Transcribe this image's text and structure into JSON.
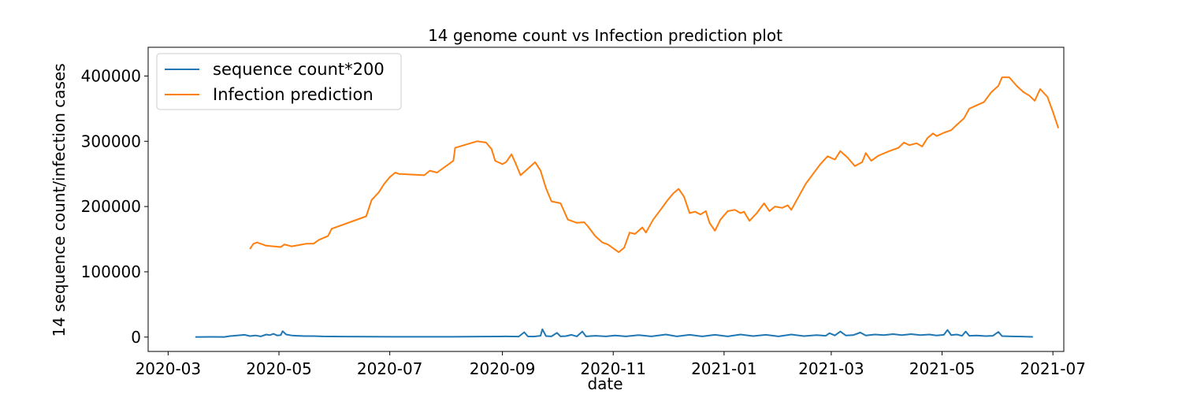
{
  "chart_data": {
    "type": "line",
    "title": "14 genome count vs Infection prediction plot",
    "xlabel": "date",
    "ylabel": "14 sequence count/infection cases",
    "xlim": [
      "2020-02-19",
      "2021-07-07"
    ],
    "ylim": [
      -22000,
      444000
    ],
    "grid": false,
    "legend_position": "top-left",
    "x_ticks": [
      "2020-03",
      "2020-05",
      "2020-07",
      "2020-09",
      "2020-11",
      "2021-01",
      "2021-03",
      "2021-05",
      "2021-07"
    ],
    "y_ticks": [
      0,
      100000,
      200000,
      300000,
      400000
    ],
    "y_tick_labels": [
      "0",
      "100000",
      "200000",
      "300000",
      "400000"
    ],
    "series": [
      {
        "name": "sequence count*200",
        "color": "#1f77b4",
        "points": [
          [
            "2020-03-16",
            200
          ],
          [
            "2020-03-25",
            300
          ],
          [
            "2020-04-01",
            200
          ],
          [
            "2020-04-04",
            1500
          ],
          [
            "2020-04-08",
            2500
          ],
          [
            "2020-04-12",
            3500
          ],
          [
            "2020-04-15",
            1500
          ],
          [
            "2020-04-18",
            2500
          ],
          [
            "2020-04-21",
            1000
          ],
          [
            "2020-04-24",
            4000
          ],
          [
            "2020-04-26",
            3000
          ],
          [
            "2020-04-28",
            5000
          ],
          [
            "2020-04-30",
            2500
          ],
          [
            "2020-05-02",
            3000
          ],
          [
            "2020-05-03",
            9000
          ],
          [
            "2020-05-05",
            4000
          ],
          [
            "2020-05-08",
            2500
          ],
          [
            "2020-05-11",
            2000
          ],
          [
            "2020-05-15",
            1500
          ],
          [
            "2020-05-20",
            1500
          ],
          [
            "2020-05-25",
            1000
          ],
          [
            "2020-06-05",
            800
          ],
          [
            "2020-06-20",
            600
          ],
          [
            "2020-07-01",
            500
          ],
          [
            "2020-07-20",
            500
          ],
          [
            "2020-08-05",
            500
          ],
          [
            "2020-08-20",
            800
          ],
          [
            "2020-09-03",
            1000
          ],
          [
            "2020-09-10",
            800
          ],
          [
            "2020-09-13",
            7500
          ],
          [
            "2020-09-15",
            1000
          ],
          [
            "2020-09-18",
            800
          ],
          [
            "2020-09-22",
            2000
          ],
          [
            "2020-09-23",
            12000
          ],
          [
            "2020-09-25",
            1500
          ],
          [
            "2020-09-28",
            1000
          ],
          [
            "2020-10-01",
            6500
          ],
          [
            "2020-10-03",
            1000
          ],
          [
            "2020-10-06",
            1500
          ],
          [
            "2020-10-09",
            3500
          ],
          [
            "2020-10-12",
            1000
          ],
          [
            "2020-10-15",
            8500
          ],
          [
            "2020-10-17",
            1000
          ],
          [
            "2020-10-22",
            2000
          ],
          [
            "2020-10-28",
            1000
          ],
          [
            "2020-11-02",
            2500
          ],
          [
            "2020-11-08",
            1000
          ],
          [
            "2020-11-15",
            3000
          ],
          [
            "2020-11-22",
            1000
          ],
          [
            "2020-11-30",
            4000
          ],
          [
            "2020-12-06",
            1000
          ],
          [
            "2020-12-13",
            3500
          ],
          [
            "2020-12-20",
            1000
          ],
          [
            "2020-12-27",
            3500
          ],
          [
            "2021-01-03",
            1000
          ],
          [
            "2021-01-10",
            4000
          ],
          [
            "2021-01-17",
            1500
          ],
          [
            "2021-01-24",
            3500
          ],
          [
            "2021-01-31",
            1000
          ],
          [
            "2021-02-07",
            4000
          ],
          [
            "2021-02-14",
            1500
          ],
          [
            "2021-02-21",
            3000
          ],
          [
            "2021-02-26",
            2000
          ],
          [
            "2021-02-28",
            6000
          ],
          [
            "2021-03-03",
            2500
          ],
          [
            "2021-03-06",
            8500
          ],
          [
            "2021-03-09",
            2500
          ],
          [
            "2021-03-13",
            3000
          ],
          [
            "2021-03-17",
            7000
          ],
          [
            "2021-03-20",
            2500
          ],
          [
            "2021-03-25",
            4000
          ],
          [
            "2021-03-30",
            3000
          ],
          [
            "2021-04-04",
            4500
          ],
          [
            "2021-04-09",
            3000
          ],
          [
            "2021-04-14",
            4500
          ],
          [
            "2021-04-19",
            3000
          ],
          [
            "2021-04-24",
            4000
          ],
          [
            "2021-04-28",
            2500
          ],
          [
            "2021-05-02",
            3500
          ],
          [
            "2021-05-04",
            11000
          ],
          [
            "2021-05-06",
            3000
          ],
          [
            "2021-05-09",
            4000
          ],
          [
            "2021-05-12",
            2000
          ],
          [
            "2021-05-14",
            8500
          ],
          [
            "2021-05-16",
            2000
          ],
          [
            "2021-05-20",
            2500
          ],
          [
            "2021-05-25",
            1500
          ],
          [
            "2021-05-29",
            2000
          ],
          [
            "2021-06-01",
            8000
          ],
          [
            "2021-06-03",
            1500
          ],
          [
            "2021-06-08",
            1000
          ],
          [
            "2021-06-14",
            800
          ],
          [
            "2021-06-20",
            300
          ]
        ]
      },
      {
        "name": "Infection prediction",
        "color": "#ff7f0e",
        "points": [
          [
            "2020-04-15",
            135000
          ],
          [
            "2020-04-17",
            143000
          ],
          [
            "2020-04-19",
            145000
          ],
          [
            "2020-04-21",
            143000
          ],
          [
            "2020-04-24",
            140000
          ],
          [
            "2020-04-28",
            139000
          ],
          [
            "2020-05-02",
            138000
          ],
          [
            "2020-05-04",
            142000
          ],
          [
            "2020-05-08",
            139000
          ],
          [
            "2020-05-12",
            141000
          ],
          [
            "2020-05-16",
            143000
          ],
          [
            "2020-05-20",
            143000
          ],
          [
            "2020-05-23",
            149000
          ],
          [
            "2020-05-28",
            155000
          ],
          [
            "2020-05-30",
            166000
          ],
          [
            "2020-06-18",
            185000
          ],
          [
            "2020-06-21",
            210000
          ],
          [
            "2020-06-25",
            222000
          ],
          [
            "2020-06-28",
            235000
          ],
          [
            "2020-07-01",
            245000
          ],
          [
            "2020-07-04",
            252000
          ],
          [
            "2020-07-06",
            250000
          ],
          [
            "2020-07-20",
            248000
          ],
          [
            "2020-07-23",
            255000
          ],
          [
            "2020-07-27",
            252000
          ],
          [
            "2020-08-05",
            270000
          ],
          [
            "2020-08-06",
            290000
          ],
          [
            "2020-08-12",
            295000
          ],
          [
            "2020-08-18",
            300000
          ],
          [
            "2020-08-23",
            298000
          ],
          [
            "2020-08-26",
            288000
          ],
          [
            "2020-08-28",
            270000
          ],
          [
            "2020-09-01",
            265000
          ],
          [
            "2020-09-03",
            268000
          ],
          [
            "2020-09-06",
            280000
          ],
          [
            "2020-09-08",
            268000
          ],
          [
            "2020-09-11",
            248000
          ],
          [
            "2020-09-15",
            258000
          ],
          [
            "2020-09-19",
            268000
          ],
          [
            "2020-09-22",
            255000
          ],
          [
            "2020-09-25",
            228000
          ],
          [
            "2020-09-28",
            208000
          ],
          [
            "2020-10-03",
            205000
          ],
          [
            "2020-10-07",
            180000
          ],
          [
            "2020-10-12",
            175000
          ],
          [
            "2020-10-16",
            176000
          ],
          [
            "2020-10-18",
            170000
          ],
          [
            "2020-10-22",
            155000
          ],
          [
            "2020-10-26",
            145000
          ],
          [
            "2020-10-29",
            142000
          ],
          [
            "2020-11-01",
            136000
          ],
          [
            "2020-11-04",
            130000
          ],
          [
            "2020-11-07",
            137000
          ],
          [
            "2020-11-10",
            160000
          ],
          [
            "2020-11-13",
            158000
          ],
          [
            "2020-11-17",
            168000
          ],
          [
            "2020-11-19",
            160000
          ],
          [
            "2020-11-23",
            180000
          ],
          [
            "2020-11-27",
            195000
          ],
          [
            "2020-12-01",
            210000
          ],
          [
            "2020-12-04",
            220000
          ],
          [
            "2020-12-07",
            227000
          ],
          [
            "2020-12-10",
            215000
          ],
          [
            "2020-12-13",
            190000
          ],
          [
            "2020-12-16",
            192000
          ],
          [
            "2020-12-19",
            188000
          ],
          [
            "2020-12-22",
            193000
          ],
          [
            "2020-12-24",
            175000
          ],
          [
            "2020-12-27",
            163000
          ],
          [
            "2020-12-30",
            180000
          ],
          [
            "2021-01-03",
            193000
          ],
          [
            "2021-01-07",
            195000
          ],
          [
            "2021-01-10",
            190000
          ],
          [
            "2021-01-12",
            192000
          ],
          [
            "2021-01-15",
            178000
          ],
          [
            "2021-01-19",
            190000
          ],
          [
            "2021-01-23",
            205000
          ],
          [
            "2021-01-26",
            193000
          ],
          [
            "2021-01-29",
            200000
          ],
          [
            "2021-02-02",
            198000
          ],
          [
            "2021-02-05",
            202000
          ],
          [
            "2021-02-07",
            195000
          ],
          [
            "2021-02-11",
            215000
          ],
          [
            "2021-02-15",
            235000
          ],
          [
            "2021-02-19",
            250000
          ],
          [
            "2021-02-23",
            265000
          ],
          [
            "2021-02-27",
            277000
          ],
          [
            "2021-03-03",
            272000
          ],
          [
            "2021-03-06",
            285000
          ],
          [
            "2021-03-10",
            275000
          ],
          [
            "2021-03-14",
            262000
          ],
          [
            "2021-03-18",
            268000
          ],
          [
            "2021-03-20",
            282000
          ],
          [
            "2021-03-23",
            270000
          ],
          [
            "2021-03-27",
            278000
          ],
          [
            "2021-04-02",
            285000
          ],
          [
            "2021-04-07",
            290000
          ],
          [
            "2021-04-10",
            298000
          ],
          [
            "2021-04-13",
            294000
          ],
          [
            "2021-04-17",
            297000
          ],
          [
            "2021-04-20",
            292000
          ],
          [
            "2021-04-23",
            305000
          ],
          [
            "2021-04-26",
            312000
          ],
          [
            "2021-04-28",
            308000
          ],
          [
            "2021-05-02",
            313000
          ],
          [
            "2021-05-06",
            317000
          ],
          [
            "2021-05-09",
            325000
          ],
          [
            "2021-05-13",
            335000
          ],
          [
            "2021-05-16",
            350000
          ],
          [
            "2021-05-20",
            355000
          ],
          [
            "2021-05-24",
            360000
          ],
          [
            "2021-05-28",
            375000
          ],
          [
            "2021-06-01",
            385000
          ],
          [
            "2021-06-03",
            398000
          ],
          [
            "2021-06-07",
            398000
          ],
          [
            "2021-06-11",
            385000
          ],
          [
            "2021-06-15",
            375000
          ],
          [
            "2021-06-18",
            370000
          ],
          [
            "2021-06-21",
            362000
          ],
          [
            "2021-06-24",
            380000
          ],
          [
            "2021-06-28",
            368000
          ],
          [
            "2021-07-01",
            345000
          ],
          [
            "2021-07-04",
            320000
          ]
        ]
      }
    ]
  }
}
